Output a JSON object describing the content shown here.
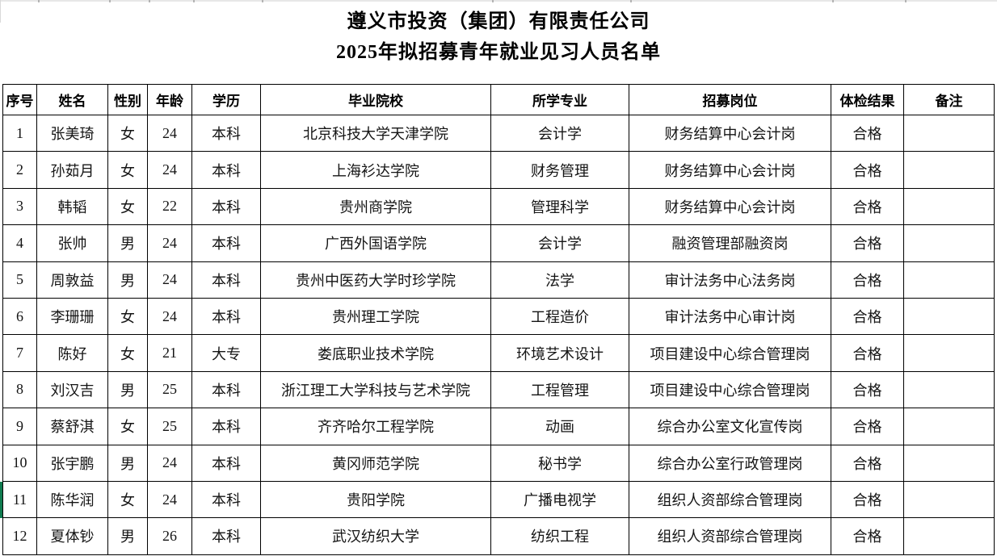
{
  "title": {
    "line1": "遵义市投资（集团）有限责任公司",
    "line2": "2025年拟招募青年就业见习人员名单"
  },
  "table": {
    "headers": [
      "序号",
      "姓名",
      "性别",
      "年龄",
      "学历",
      "毕业院校",
      "所学专业",
      "招募岗位",
      "体检结果",
      "备注"
    ],
    "rows": [
      [
        "1",
        "张美琦",
        "女",
        "24",
        "本科",
        "北京科技大学天津学院",
        "会计学",
        "财务结算中心会计岗",
        "合格",
        ""
      ],
      [
        "2",
        "孙茹月",
        "女",
        "24",
        "本科",
        "上海衫达学院",
        "财务管理",
        "财务结算中心会计岗",
        "合格",
        ""
      ],
      [
        "3",
        "韩韬",
        "女",
        "22",
        "本科",
        "贵州商学院",
        "管理科学",
        "财务结算中心会计岗",
        "合格",
        ""
      ],
      [
        "4",
        "张帅",
        "男",
        "24",
        "本科",
        "广西外国语学院",
        "会计学",
        "融资管理部融资岗",
        "合格",
        ""
      ],
      [
        "5",
        "周敦益",
        "男",
        "24",
        "本科",
        "贵州中医药大学时珍学院",
        "法学",
        "审计法务中心法务岗",
        "合格",
        ""
      ],
      [
        "6",
        "李珊珊",
        "女",
        "24",
        "本科",
        "贵州理工学院",
        "工程造价",
        "审计法务中心审计岗",
        "合格",
        ""
      ],
      [
        "7",
        "陈好",
        "女",
        "21",
        "大专",
        "娄底职业技术学院",
        "环境艺术设计",
        "项目建设中心综合管理岗",
        "合格",
        ""
      ],
      [
        "8",
        "刘汉吉",
        "男",
        "25",
        "本科",
        "浙江理工大学科技与艺术学院",
        "工程管理",
        "项目建设中心综合管理岗",
        "合格",
        ""
      ],
      [
        "9",
        "蔡舒淇",
        "女",
        "25",
        "本科",
        "齐齐哈尔工程学院",
        "动画",
        "综合办公室文化宣传岗",
        "合格",
        ""
      ],
      [
        "10",
        "张宇鹏",
        "男",
        "24",
        "本科",
        "黄冈师范学院",
        "秘书学",
        "综合办公室行政管理岗",
        "合格",
        ""
      ],
      [
        "11",
        "陈华润",
        "女",
        "24",
        "本科",
        "贵阳学院",
        "广播电视学",
        "组织人资部综合管理岗",
        "合格",
        ""
      ],
      [
        "12",
        "夏体钞",
        "男",
        "26",
        "本科",
        "武汉纺织大学",
        "纺织工程",
        "组织人资部综合管理岗",
        "合格",
        ""
      ]
    ]
  },
  "colors": {
    "border": "#000000",
    "selection_marker_green": "#0f7b4f",
    "grid_remnant_gray": "#e7e7e7"
  },
  "layout_marks": {
    "column_tick_positions": [
      45,
      133,
      182,
      237,
      322,
      607,
      778,
      1028,
      1118
    ]
  }
}
